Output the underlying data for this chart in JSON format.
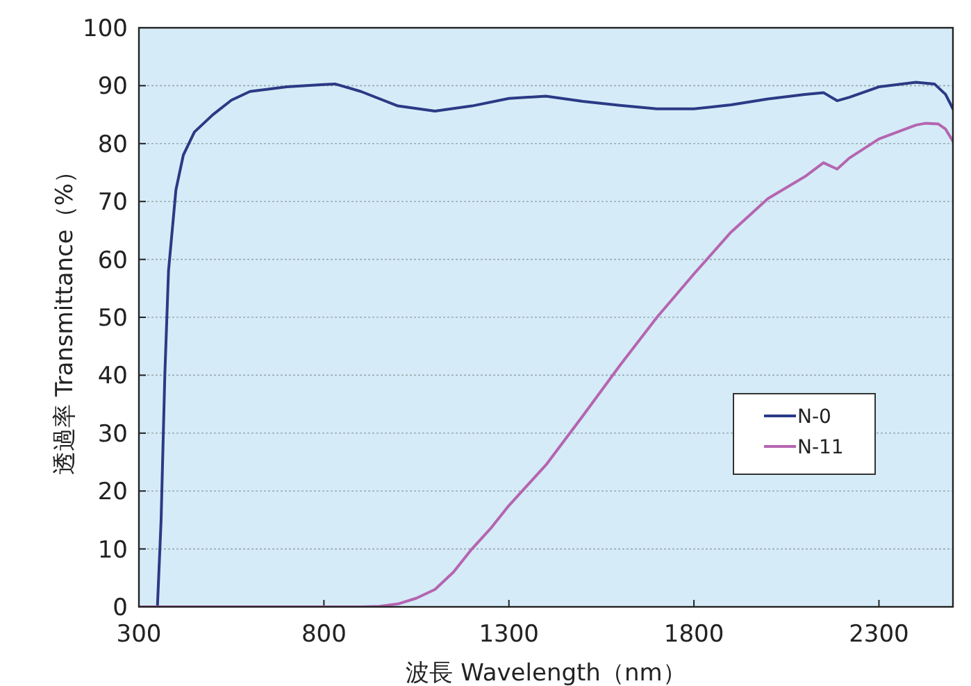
{
  "chart_data": {
    "type": "line",
    "xlabel": "波長 Wavelength（nm）",
    "ylabel": "透過率 Transmittance（%）",
    "xlim": [
      300,
      2500
    ],
    "ylim": [
      0,
      100
    ],
    "xticks": [
      300,
      800,
      1300,
      1800,
      2300
    ],
    "yticks": [
      0,
      10,
      20,
      30,
      40,
      50,
      60,
      70,
      80,
      90,
      100
    ],
    "grid": "y",
    "legend": "right",
    "series": [
      {
        "name": "N-0",
        "color": "#2b3a85",
        "x": [
          300,
          350,
          360,
          370,
          380,
          400,
          420,
          450,
          500,
          550,
          600,
          700,
          800,
          830,
          900,
          1000,
          1100,
          1200,
          1300,
          1400,
          1500,
          1600,
          1700,
          1800,
          1900,
          2000,
          2100,
          2150,
          2187,
          2220,
          2300,
          2400,
          2450,
          2480,
          2500
        ],
        "values": [
          0,
          0,
          15,
          40,
          58,
          72,
          78,
          82,
          85,
          87.5,
          89,
          89.8,
          90.2,
          90.3,
          89,
          86.5,
          85.6,
          86.5,
          87.8,
          88.2,
          87.3,
          86.6,
          86,
          86,
          86.7,
          87.7,
          88.5,
          88.8,
          87.4,
          88,
          89.8,
          90.6,
          90.3,
          88.5,
          86
        ]
      },
      {
        "name": "N-11",
        "color": "#b565b0",
        "x": [
          300,
          900,
          950,
          1000,
          1050,
          1100,
          1150,
          1200,
          1250,
          1300,
          1400,
          1500,
          1600,
          1700,
          1800,
          1900,
          2000,
          2100,
          2150,
          2187,
          2220,
          2300,
          2400,
          2425,
          2460,
          2480,
          2500
        ],
        "values": [
          0,
          0,
          0.1,
          0.5,
          1.5,
          3,
          6,
          10,
          13.5,
          17.5,
          24.5,
          33,
          41.7,
          50,
          57.5,
          64.7,
          70.5,
          74.3,
          76.7,
          75.6,
          77.5,
          80.8,
          83.2,
          83.5,
          83.4,
          82.5,
          80.4
        ]
      }
    ]
  }
}
